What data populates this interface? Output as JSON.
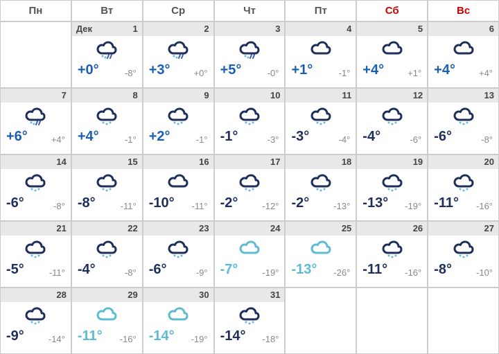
{
  "colors": {
    "darkCloud": "#1e2f5c",
    "lightCloud": "#5dbcd2",
    "snow": "#6db5e0",
    "rain": "#3a5fb0",
    "posTemp": "#1a5fb4",
    "negTemp": "#1e2f5c",
    "lightTemp": "#5dbcd2",
    "nightTemp": "#888888",
    "weekday": "#555555",
    "weekend": "#cc0000"
  },
  "headers": [
    {
      "label": "Пн",
      "weekend": false
    },
    {
      "label": "Вт",
      "weekend": false
    },
    {
      "label": "Ср",
      "weekend": false
    },
    {
      "label": "Чт",
      "weekend": false
    },
    {
      "label": "Пт",
      "weekend": false
    },
    {
      "label": "Сб",
      "weekend": true
    },
    {
      "label": "Вс",
      "weekend": true
    }
  ],
  "monthLabel": "Дек",
  "weeks": [
    [
      {
        "empty": true
      },
      {
        "date": "1",
        "showMonth": true,
        "icon": "cloud-rain-snow",
        "tDay": "+0°",
        "tNight": "-8°",
        "dayColor": "posTemp"
      },
      {
        "date": "2",
        "icon": "cloud-rain-snow",
        "tDay": "+3°",
        "tNight": "+0°",
        "dayColor": "posTemp"
      },
      {
        "date": "3",
        "icon": "cloud-rain-snow",
        "tDay": "+5°",
        "tNight": "-0°",
        "dayColor": "posTemp"
      },
      {
        "date": "4",
        "icon": "cloud",
        "tDay": "+1°",
        "tNight": "-1°",
        "dayColor": "posTemp"
      },
      {
        "date": "5",
        "icon": "cloud",
        "tDay": "+4°",
        "tNight": "+1°",
        "dayColor": "posTemp"
      },
      {
        "date": "6",
        "icon": "cloud",
        "tDay": "+4°",
        "tNight": "+4°",
        "dayColor": "posTemp"
      }
    ],
    [
      {
        "date": "7",
        "icon": "cloud-rain-snow",
        "tDay": "+6°",
        "tNight": "+4°",
        "dayColor": "posTemp"
      },
      {
        "date": "8",
        "icon": "cloud-snow",
        "tDay": "+4°",
        "tNight": "-1°",
        "dayColor": "posTemp"
      },
      {
        "date": "9",
        "icon": "cloud-snow",
        "tDay": "+2°",
        "tNight": "-1°",
        "dayColor": "posTemp"
      },
      {
        "date": "10",
        "icon": "cloud-snow",
        "tDay": "-1°",
        "tNight": "-3°",
        "dayColor": "negTemp"
      },
      {
        "date": "11",
        "icon": "cloud-snow",
        "tDay": "-3°",
        "tNight": "-4°",
        "dayColor": "negTemp"
      },
      {
        "date": "12",
        "icon": "cloud-snow",
        "tDay": "-4°",
        "tNight": "-6°",
        "dayColor": "negTemp"
      },
      {
        "date": "13",
        "icon": "cloud-snow",
        "tDay": "-6°",
        "tNight": "-8°",
        "dayColor": "negTemp"
      }
    ],
    [
      {
        "date": "14",
        "icon": "cloud-snow",
        "tDay": "-6°",
        "tNight": "-8°",
        "dayColor": "negTemp"
      },
      {
        "date": "15",
        "icon": "cloud-snow",
        "tDay": "-8°",
        "tNight": "-11°",
        "dayColor": "negTemp"
      },
      {
        "date": "16",
        "icon": "cloud",
        "tDay": "-10°",
        "tNight": "-11°",
        "dayColor": "negTemp"
      },
      {
        "date": "17",
        "icon": "cloud-snow",
        "tDay": "-2°",
        "tNight": "-12°",
        "dayColor": "negTemp"
      },
      {
        "date": "18",
        "icon": "cloud-snow",
        "tDay": "-2°",
        "tNight": "-13°",
        "dayColor": "negTemp"
      },
      {
        "date": "19",
        "icon": "cloud-snow",
        "tDay": "-13°",
        "tNight": "-19°",
        "dayColor": "negTemp"
      },
      {
        "date": "20",
        "icon": "cloud-snow",
        "tDay": "-11°",
        "tNight": "-16°",
        "dayColor": "negTemp"
      }
    ],
    [
      {
        "date": "21",
        "icon": "cloud-snow",
        "tDay": "-5°",
        "tNight": "-11°",
        "dayColor": "negTemp"
      },
      {
        "date": "22",
        "icon": "cloud-snow",
        "tDay": "-4°",
        "tNight": "-8°",
        "dayColor": "negTemp"
      },
      {
        "date": "23",
        "icon": "cloud-snow",
        "tDay": "-6°",
        "tNight": "-9°",
        "dayColor": "negTemp"
      },
      {
        "date": "24",
        "icon": "cloud-light",
        "tDay": "-7°",
        "tNight": "-19°",
        "dayColor": "lightTemp"
      },
      {
        "date": "25",
        "icon": "cloud-light",
        "tDay": "-13°",
        "tNight": "-26°",
        "dayColor": "lightTemp"
      },
      {
        "date": "26",
        "icon": "cloud-snow",
        "tDay": "-11°",
        "tNight": "-16°",
        "dayColor": "negTemp"
      },
      {
        "date": "27",
        "icon": "cloud-snow",
        "tDay": "-8°",
        "tNight": "-10°",
        "dayColor": "negTemp"
      }
    ],
    [
      {
        "date": "28",
        "icon": "cloud-snow",
        "tDay": "-9°",
        "tNight": "-14°",
        "dayColor": "negTemp"
      },
      {
        "date": "29",
        "icon": "cloud-light",
        "tDay": "-11°",
        "tNight": "-16°",
        "dayColor": "lightTemp"
      },
      {
        "date": "30",
        "icon": "cloud-light",
        "tDay": "-14°",
        "tNight": "-19°",
        "dayColor": "lightTemp"
      },
      {
        "date": "31",
        "icon": "cloud-snow",
        "tDay": "-14°",
        "tNight": "-18°",
        "dayColor": "negTemp"
      },
      {
        "empty": true
      },
      {
        "empty": true
      },
      {
        "empty": true
      }
    ]
  ]
}
